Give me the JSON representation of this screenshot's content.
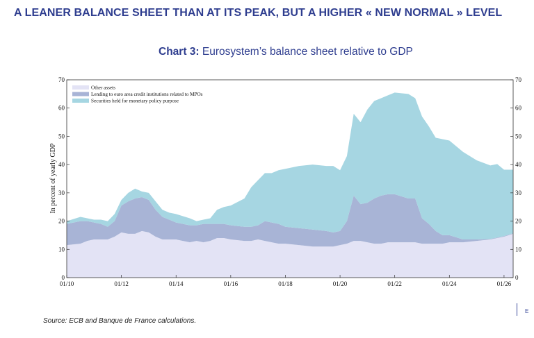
{
  "headline": "A LEANER BALANCE SHEET THAN AT ITS PEAK, BUT A HIGHER « NEW NORMAL » LEVEL",
  "chart_title": {
    "number": "Chart 3:",
    "text": "Eurosystem’s balance sheet relative to GDP"
  },
  "source": "Source:  ECB and Banque de France calculations.",
  "corner_mark": "E",
  "colors": {
    "title": "#2e3d8f",
    "other_assets": "#e3e3f5",
    "lending": "#a8b4d6",
    "securities": "#a6d6e2",
    "axis": "#333333"
  },
  "chart_data": {
    "type": "area",
    "stacked": true,
    "title": "",
    "xlabel": "",
    "ylabel": "In percent of yearly GDP",
    "ylim": [
      0,
      70
    ],
    "yticks": [
      0,
      10,
      20,
      30,
      40,
      50,
      60,
      70
    ],
    "xlim": [
      2010.0,
      2026.333
    ],
    "xticks": [
      2010,
      2012,
      2014,
      2016,
      2018,
      2020,
      2022,
      2024,
      2026
    ],
    "xtick_labels": [
      "01/10",
      "01/12",
      "01/14",
      "01/16",
      "01/18",
      "01/20",
      "01/22",
      "01/24",
      "01/26"
    ],
    "right_axis": true,
    "legend": "top-left",
    "x": [
      2010.0,
      2010.5,
      2010.75,
      2011.0,
      2011.25,
      2011.5,
      2011.75,
      2012.0,
      2012.25,
      2012.5,
      2012.75,
      2013.0,
      2013.25,
      2013.5,
      2013.75,
      2014.0,
      2014.5,
      2014.75,
      2015.0,
      2015.25,
      2015.5,
      2015.75,
      2016.0,
      2016.5,
      2016.75,
      2017.0,
      2017.25,
      2017.5,
      2017.75,
      2018.0,
      2018.5,
      2019.0,
      2019.5,
      2019.75,
      2020.0,
      2020.25,
      2020.5,
      2020.75,
      2021.0,
      2021.25,
      2021.5,
      2021.75,
      2022.0,
      2022.5,
      2022.75,
      2023.0,
      2023.25,
      2023.5,
      2023.75,
      2024.0,
      2024.5,
      2025.0,
      2025.5,
      2025.75,
      2026.0,
      2026.333
    ],
    "series": [
      {
        "name": "Other assets",
        "color": "#e3e3f5",
        "values": [
          11.5,
          12,
          13,
          13.5,
          13.5,
          13.5,
          14.5,
          16,
          15.5,
          15.5,
          16.5,
          16,
          14.5,
          13.5,
          13.5,
          13.5,
          12.5,
          13,
          12.5,
          13,
          14,
          14,
          13.5,
          13,
          13,
          13.5,
          13,
          12.5,
          12,
          12,
          11.5,
          11,
          11,
          11,
          11.5,
          12,
          13,
          13,
          12.5,
          12,
          12,
          12.5,
          12.5,
          12.5,
          12.5,
          12,
          12,
          12,
          12,
          12.5,
          12.5,
          13,
          13.5,
          14,
          14.5,
          15.5
        ]
      },
      {
        "name": "Lending to euro area credit institutions related to MPOs",
        "color": "#a8b4d6",
        "values": [
          7.5,
          8,
          7,
          6,
          5.5,
          4.5,
          5.5,
          9.5,
          11.5,
          12.5,
          12,
          11.5,
          9.5,
          8,
          7,
          6,
          6,
          5.5,
          6.5,
          6,
          5,
          5,
          5,
          5,
          5,
          5,
          7,
          7,
          7,
          6,
          6,
          6,
          5.5,
          5,
          5,
          8,
          16,
          13,
          14,
          16,
          17,
          17,
          17,
          15.5,
          15.5,
          9,
          7,
          4.5,
          3,
          2.5,
          1,
          0.5,
          0.2,
          0.2,
          0.2,
          0.2
        ]
      },
      {
        "name": "Securities held for monetary policy purpose",
        "color": "#a6d6e2",
        "values": [
          1,
          1.5,
          1,
          1,
          1.5,
          2,
          2.5,
          2,
          3,
          3.5,
          2,
          2.5,
          3,
          2.5,
          2.5,
          3,
          2.5,
          1.5,
          1.5,
          2,
          5,
          6,
          7,
          10,
          14,
          16,
          17,
          17.5,
          19,
          20.5,
          22,
          23,
          23,
          23.5,
          21.5,
          23,
          29,
          29,
          33,
          34.5,
          34.5,
          35,
          36,
          37,
          35.5,
          36,
          34.5,
          33,
          34,
          33.5,
          31,
          28,
          26,
          26,
          23.5,
          22.5
        ]
      }
    ]
  }
}
